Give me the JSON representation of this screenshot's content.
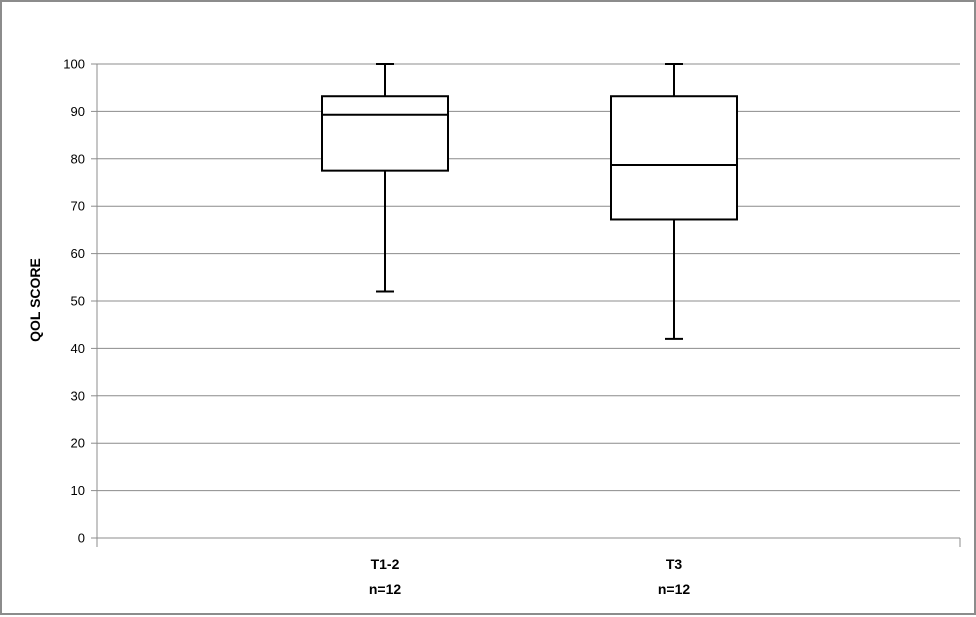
{
  "chart_data": {
    "type": "box",
    "ylabel": "QOL SCORE",
    "xlabel": "",
    "title": "",
    "ylim": [
      0,
      100
    ],
    "yticks": [
      0,
      10,
      20,
      30,
      40,
      50,
      60,
      70,
      80,
      90,
      100
    ],
    "grid": true,
    "categories": [
      {
        "label": "T1-2",
        "n_label": "n=12"
      },
      {
        "label": "T3",
        "n_label": "n=12"
      }
    ],
    "boxes": [
      {
        "category": "T1-2",
        "min": 52,
        "q1": 77.5,
        "median": 89.3,
        "q3": 93.2,
        "max": 100
      },
      {
        "category": "T3",
        "min": 42,
        "q1": 67.2,
        "median": 78.7,
        "q3": 93.2,
        "max": 100
      }
    ]
  }
}
